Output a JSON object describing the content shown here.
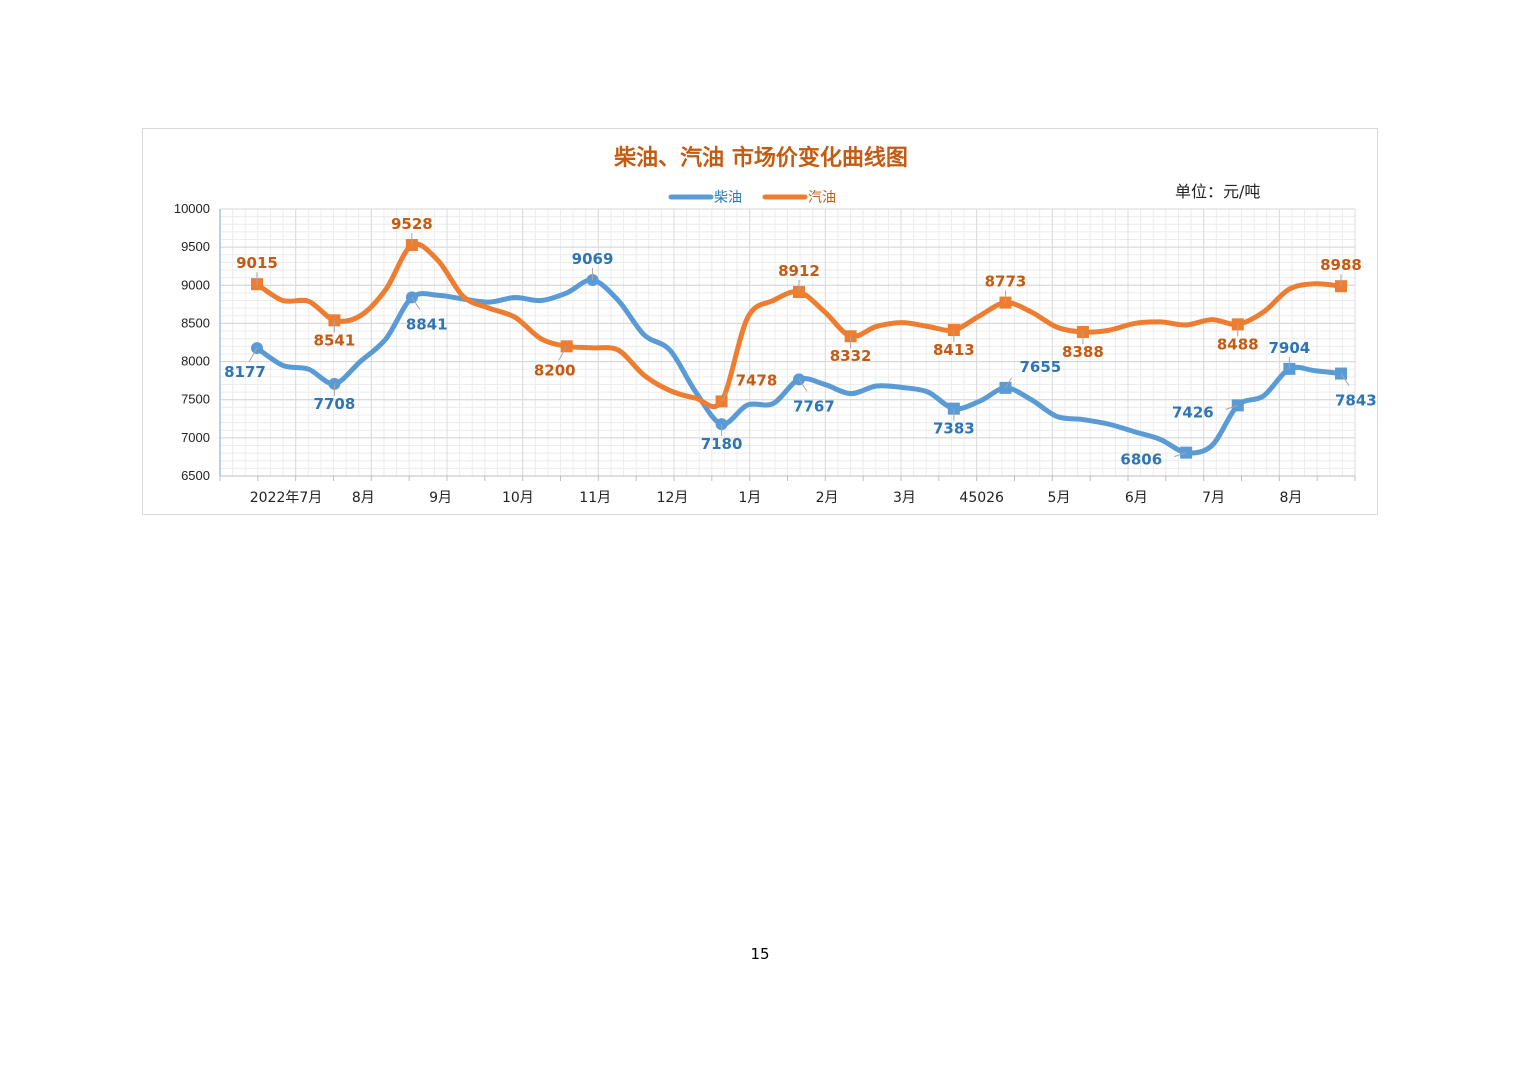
{
  "page": {
    "page_number": "15"
  },
  "chart_data": {
    "type": "line",
    "title": "柴油、汽油 市场价变化曲线图",
    "unit": "单位：元/吨",
    "ylim": [
      6500,
      10000
    ],
    "yticks": [
      10000,
      9500,
      9000,
      8500,
      8000,
      7500,
      7000,
      6500
    ],
    "xticks": [
      "2022年7月",
      "8月",
      "9月",
      "10月",
      "11月",
      "12月",
      "1月",
      "2月",
      "3月",
      "45026",
      "5月",
      "6月",
      "7月",
      "8月"
    ],
    "grid": true,
    "legend_position": "top-center",
    "series": [
      {
        "name": "柴油",
        "color": "#5b9bd5",
        "label_color": "#2e75b6",
        "values": [
          8177,
          7950,
          7900,
          7708,
          8000,
          8300,
          8841,
          8870,
          8820,
          8780,
          8840,
          8800,
          8900,
          9069,
          8800,
          8350,
          8150,
          7600,
          7180,
          7430,
          7450,
          7767,
          7700,
          7580,
          7680,
          7660,
          7600,
          7383,
          7480,
          7655,
          7500,
          7280,
          7240,
          7180,
          7080,
          6980,
          6806,
          6900,
          7426,
          7550,
          7904,
          7880,
          7843
        ],
        "labels": [
          {
            "i": 0,
            "text": "8177",
            "pos": "bottom-left",
            "marker": "circle"
          },
          {
            "i": 3,
            "text": "7708",
            "pos": "below",
            "marker": "circle"
          },
          {
            "i": 6,
            "text": "8841",
            "pos": "bottom-right",
            "marker": "circle"
          },
          {
            "i": 13,
            "text": "9069",
            "pos": "above",
            "marker": "circle"
          },
          {
            "i": 18,
            "text": "7180",
            "pos": "below",
            "marker": "circle"
          },
          {
            "i": 21,
            "text": "7767",
            "pos": "bottom-right",
            "marker": "circle"
          },
          {
            "i": 27,
            "text": "7383",
            "pos": "below",
            "marker": "square"
          },
          {
            "i": 29,
            "text": "7655",
            "pos": "top-right",
            "marker": "square"
          },
          {
            "i": 36,
            "text": "6806",
            "pos": "left",
            "marker": "square"
          },
          {
            "i": 38,
            "text": "7426",
            "pos": "left",
            "marker": "square"
          },
          {
            "i": 40,
            "text": "7904",
            "pos": "above",
            "marker": "square"
          },
          {
            "i": 42,
            "text": "7843",
            "pos": "bottom-right",
            "marker": "square"
          }
        ]
      },
      {
        "name": "汽油",
        "color": "#ed7d31",
        "label_color": "#c55a11",
        "values": [
          9015,
          8800,
          8790,
          8541,
          8600,
          8950,
          9528,
          9330,
          8850,
          8700,
          8580,
          8300,
          8200,
          8180,
          8150,
          7820,
          7620,
          7520,
          7478,
          8570,
          8800,
          8912,
          8650,
          8332,
          8460,
          8510,
          8460,
          8413,
          8600,
          8773,
          8650,
          8450,
          8388,
          8410,
          8500,
          8520,
          8480,
          8550,
          8488,
          8650,
          8950,
          9020,
          8988
        ],
        "labels": [
          {
            "i": 0,
            "text": "9015",
            "pos": "above",
            "marker": "square"
          },
          {
            "i": 3,
            "text": "8541",
            "pos": "below",
            "marker": "square"
          },
          {
            "i": 6,
            "text": "9528",
            "pos": "above",
            "marker": "square"
          },
          {
            "i": 12,
            "text": "8200",
            "pos": "bottom-left",
            "marker": "square"
          },
          {
            "i": 18,
            "text": "7478",
            "pos": "top-right",
            "marker": "square"
          },
          {
            "i": 21,
            "text": "8912",
            "pos": "above",
            "marker": "square"
          },
          {
            "i": 23,
            "text": "8332",
            "pos": "below",
            "marker": "square"
          },
          {
            "i": 27,
            "text": "8413",
            "pos": "below",
            "marker": "square"
          },
          {
            "i": 29,
            "text": "8773",
            "pos": "above",
            "marker": "square"
          },
          {
            "i": 32,
            "text": "8388",
            "pos": "below",
            "marker": "square"
          },
          {
            "i": 38,
            "text": "8488",
            "pos": "below",
            "marker": "square"
          },
          {
            "i": 42,
            "text": "8988",
            "pos": "above",
            "marker": "square"
          }
        ]
      }
    ]
  }
}
